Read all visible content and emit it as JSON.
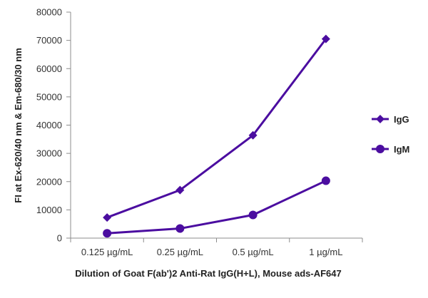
{
  "chart_data": {
    "type": "line",
    "categories": [
      "0.125 µg/mL",
      "0.25 µg/mL",
      "0.5 µg/mL",
      "1 µg/mL"
    ],
    "series": [
      {
        "name": "IgG",
        "values": [
          7300,
          17000,
          36400,
          70500
        ],
        "marker": "diamond",
        "color": "#4B0DA0"
      },
      {
        "name": "IgM",
        "values": [
          1700,
          3400,
          8200,
          20300
        ],
        "marker": "circle",
        "color": "#4B0DA0"
      }
    ],
    "xlabel": "Dilution of Goat F(ab')2 Anti-Rat IgG(H+L), Mouse ads-AF647",
    "ylabel": "FI at Ex-620/40 nm & Em-680/30 nm",
    "ylim": [
      0,
      80000
    ],
    "yticks": [
      0,
      10000,
      20000,
      30000,
      40000,
      50000,
      60000,
      70000,
      80000
    ],
    "grid": false,
    "legend_position": "right",
    "axis_color": "#8C8C8C"
  }
}
